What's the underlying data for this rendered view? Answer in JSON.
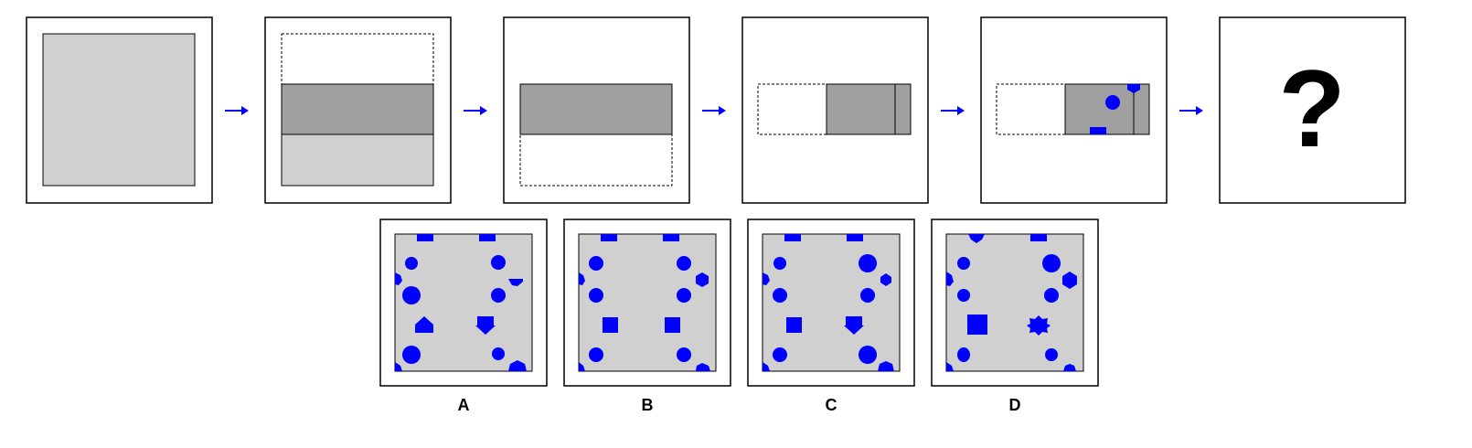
{
  "colors": {
    "frame_border": "#000000",
    "background": "#ffffff",
    "paper_light": "#d0d0d0",
    "paper_folded": "#a0a0a0",
    "arrow": "#0000ff",
    "hole": "#0000ff"
  },
  "sequence": {
    "steps": [
      {
        "id": "step-1",
        "description": "unfolded-square"
      },
      {
        "id": "step-2",
        "description": "fold-top-down"
      },
      {
        "id": "step-3",
        "description": "fold-bottom-up"
      },
      {
        "id": "step-4",
        "description": "fold-left-right"
      },
      {
        "id": "step-5",
        "description": "punch-holes"
      }
    ],
    "question_mark": "?",
    "arrow_icon": "right-arrow-icon"
  },
  "options": [
    {
      "label": "A"
    },
    {
      "label": "B"
    },
    {
      "label": "C"
    },
    {
      "label": "D"
    }
  ]
}
